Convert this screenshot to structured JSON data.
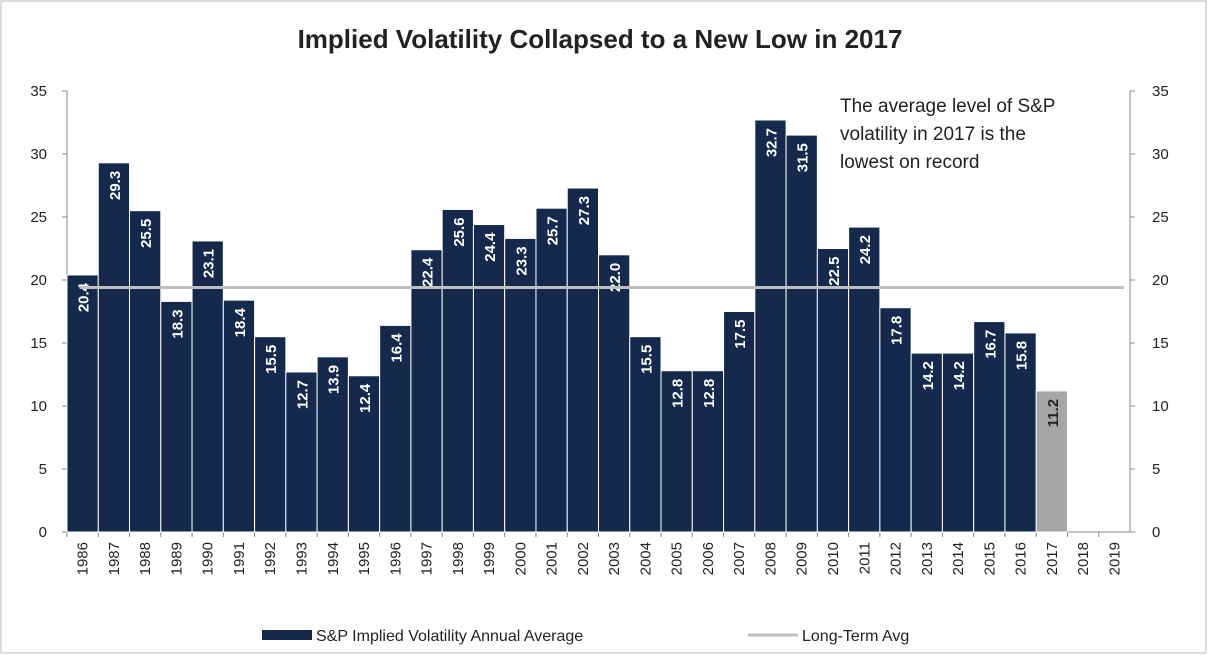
{
  "chart_data": {
    "type": "bar",
    "title": "Implied Volatility Collapsed to a New Low in 2017",
    "annotation": [
      "The average level of S&P",
      "volatility in 2017 is the",
      "lowest on record"
    ],
    "categories": [
      "1986",
      "1987",
      "1988",
      "1989",
      "1990",
      "1991",
      "1992",
      "1993",
      "1994",
      "1995",
      "1996",
      "1997",
      "1998",
      "1999",
      "2000",
      "2001",
      "2002",
      "2003",
      "2004",
      "2005",
      "2006",
      "2007",
      "2008",
      "2009",
      "2010",
      "2011",
      "2012",
      "2013",
      "2014",
      "2015",
      "2016",
      "2017",
      "2018",
      "2019"
    ],
    "series": [
      {
        "name": "S&P Implied Volatility Annual Average",
        "color": "#14294b",
        "colors": [
          "#14294b",
          "#14294b",
          "#14294b",
          "#14294b",
          "#14294b",
          "#14294b",
          "#14294b",
          "#14294b",
          "#14294b",
          "#14294b",
          "#14294b",
          "#14294b",
          "#14294b",
          "#14294b",
          "#14294b",
          "#14294b",
          "#14294b",
          "#14294b",
          "#14294b",
          "#14294b",
          "#14294b",
          "#14294b",
          "#14294b",
          "#14294b",
          "#14294b",
          "#14294b",
          "#14294b",
          "#14294b",
          "#14294b",
          "#14294b",
          "#14294b",
          "#a6a6a6",
          "#14294b",
          "#14294b"
        ],
        "values": [
          20.4,
          29.3,
          25.5,
          18.3,
          23.1,
          18.4,
          15.5,
          12.7,
          13.9,
          12.4,
          16.4,
          22.4,
          25.6,
          24.4,
          23.3,
          25.7,
          27.3,
          22.0,
          15.5,
          12.8,
          12.8,
          17.5,
          32.7,
          31.5,
          22.5,
          24.2,
          17.8,
          14.2,
          14.2,
          16.7,
          15.8,
          11.2,
          null,
          null
        ],
        "value_labels": [
          "20.4",
          "29.3",
          "25.5",
          "18.3",
          "23.1",
          "18.4",
          "15.5",
          "12.7",
          "13.9",
          "12.4",
          "16.4",
          "22.4",
          "25.6",
          "24.4",
          "23.3",
          "25.7",
          "27.3",
          "22.0",
          "15.5",
          "12.8",
          "12.8",
          "17.5",
          "32.7",
          "31.5",
          "22.5",
          "24.2",
          "17.8",
          "14.2",
          "14.2",
          "16.7",
          "15.8",
          "11.2",
          null,
          null
        ]
      }
    ],
    "long_term_avg": {
      "name": "Long-Term Avg",
      "value": 19.4,
      "color": "#bfbfbf"
    },
    "ylim": [
      0,
      35
    ],
    "yticks": [
      0,
      5,
      10,
      15,
      20,
      25,
      30,
      35
    ],
    "y2lim": [
      0,
      35
    ],
    "y2ticks": [
      0,
      5,
      10,
      15,
      20,
      25,
      30,
      35
    ]
  }
}
